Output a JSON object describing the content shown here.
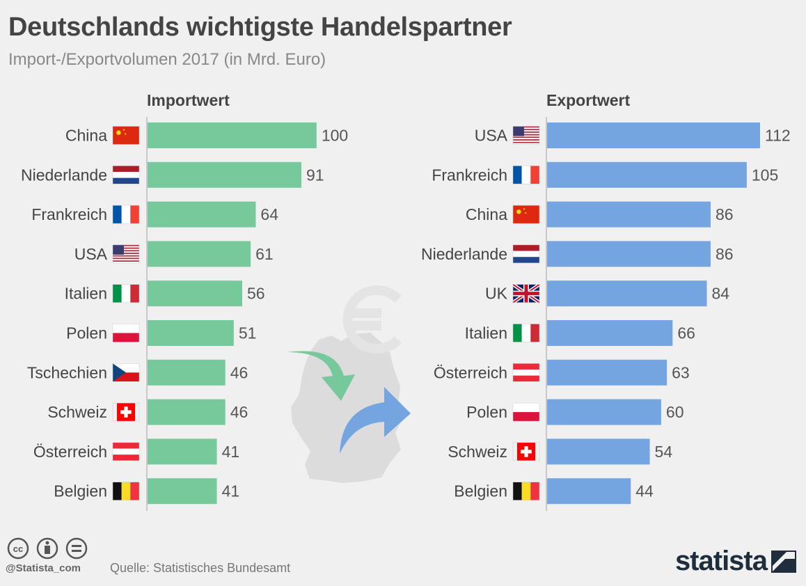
{
  "title": "Deutschlands wichtigste Handelspartner",
  "subtitle": "Import-/Exportvolumen 2017 (in Mrd. Euro)",
  "footer": {
    "source": "Quelle: Statistisches Bundesamt",
    "handle": "@Statista_com",
    "brand": "statista"
  },
  "colors": {
    "import": "#77c89b",
    "export": "#74a5e1",
    "label": "#444444",
    "value": "#555555",
    "map": "#dcdcdc"
  },
  "chart_data": [
    {
      "type": "bar",
      "orientation": "horizontal",
      "title": "Importwert",
      "categories": [
        "China",
        "Niederlande",
        "Frankreich",
        "USA",
        "Italien",
        "Polen",
        "Tschechien",
        "Schweiz",
        "Österreich",
        "Belgien"
      ],
      "flags": [
        "flag-china-icon",
        "flag-netherlands-icon",
        "flag-france-icon",
        "flag-usa-icon",
        "flag-italy-icon",
        "flag-poland-icon",
        "flag-czech-icon",
        "flag-switzerland-icon",
        "flag-austria-icon",
        "flag-belgium-icon"
      ],
      "values": [
        100,
        91,
        64,
        61,
        56,
        51,
        46,
        46,
        41,
        41
      ],
      "xlim": [
        0,
        112
      ],
      "color": "#77c89b"
    },
    {
      "type": "bar",
      "orientation": "horizontal",
      "title": "Exportwert",
      "categories": [
        "USA",
        "Frankreich",
        "China",
        "Niederlande",
        "UK",
        "Italien",
        "Österreich",
        "Polen",
        "Schweiz",
        "Belgien"
      ],
      "flags": [
        "flag-usa-icon",
        "flag-france-icon",
        "flag-china-icon",
        "flag-netherlands-icon",
        "flag-uk-icon",
        "flag-italy-icon",
        "flag-austria-icon",
        "flag-poland-icon",
        "flag-switzerland-icon",
        "flag-belgium-icon"
      ],
      "values": [
        112,
        105,
        86,
        86,
        84,
        66,
        63,
        60,
        54,
        44
      ],
      "xlim": [
        0,
        112
      ],
      "color": "#74a5e1"
    }
  ]
}
